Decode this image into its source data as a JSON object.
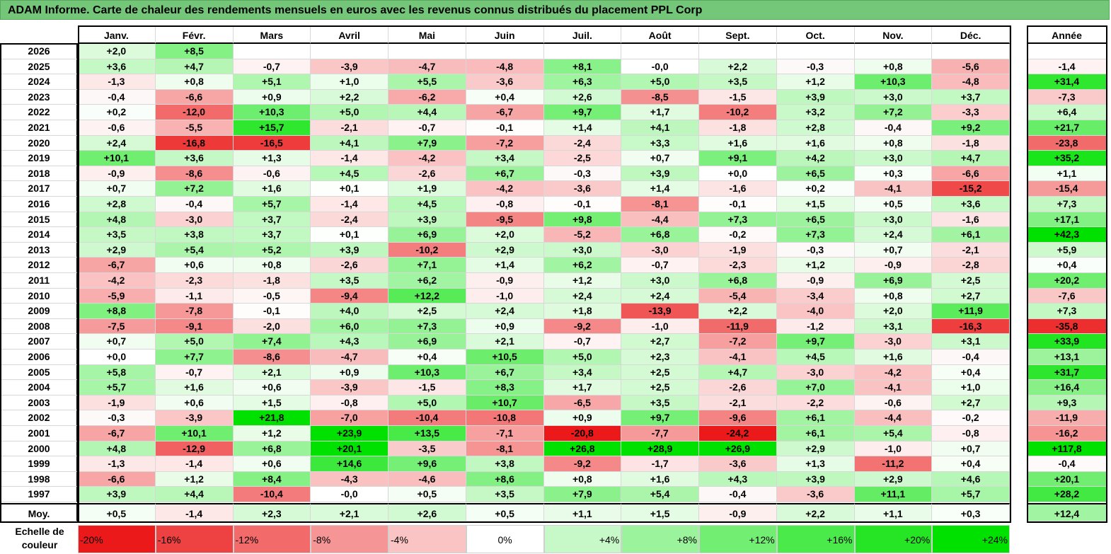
{
  "title": "ADAM Informe. Carte de chaleur des rendements mensuels en euros avec les revenus connus distribués du placement PPL Corp",
  "chart_data": {
    "type": "heatmap",
    "title": "ADAM Informe. Carte de chaleur des rendements mensuels en euros avec les revenus connus distribués du placement PPL Corp",
    "columns": [
      "Janv.",
      "Févr.",
      "Mars",
      "Avril",
      "Mai",
      "Juin",
      "Juil.",
      "Août",
      "Sept.",
      "Oct.",
      "Nov.",
      "Déc."
    ],
    "annual_header": "Année",
    "rows": [
      {
        "year": "2026",
        "values": [
          "+2,0",
          "+8,5",
          "",
          "",
          "",
          "",
          "",
          "",
          "",
          "",
          "",
          ""
        ],
        "annual": ""
      },
      {
        "year": "2025",
        "values": [
          "+3,6",
          "+4,7",
          "-0,7",
          "-3,9",
          "-4,7",
          "-4,8",
          "+8,1",
          "-0,0",
          "+2,2",
          "-0,3",
          "+0,8",
          "-5,6"
        ],
        "annual": "-1,4"
      },
      {
        "year": "2024",
        "values": [
          "-1,3",
          "+0,8",
          "+5,1",
          "+1,0",
          "+5,5",
          "-3,6",
          "+6,3",
          "+5,0",
          "+3,5",
          "+1,2",
          "+10,3",
          "-4,8"
        ],
        "annual": "+31,4"
      },
      {
        "year": "2023",
        "values": [
          "-0,4",
          "-6,6",
          "+0,9",
          "+2,2",
          "-6,2",
          "+0,4",
          "+2,6",
          "-8,5",
          "-1,5",
          "+3,9",
          "+3,0",
          "+3,7"
        ],
        "annual": "-7,3"
      },
      {
        "year": "2022",
        "values": [
          "+0,2",
          "-12,0",
          "+10,3",
          "+5,0",
          "+4,4",
          "-6,7",
          "+9,7",
          "+1,7",
          "-10,2",
          "+3,2",
          "+7,2",
          "-3,3"
        ],
        "annual": "+6,4"
      },
      {
        "year": "2021",
        "values": [
          "-0,6",
          "-5,5",
          "+15,7",
          "-2,1",
          "-0,7",
          "-0,1",
          "+1,4",
          "+4,1",
          "-1,8",
          "+2,8",
          "-0,4",
          "+9,2"
        ],
        "annual": "+21,7"
      },
      {
        "year": "2020",
        "values": [
          "+2,4",
          "-16,8",
          "-16,5",
          "+4,1",
          "+7,9",
          "-7,2",
          "-2,4",
          "+3,3",
          "+1,6",
          "+1,6",
          "+0,8",
          "-1,8"
        ],
        "annual": "-23,8"
      },
      {
        "year": "2019",
        "values": [
          "+10,1",
          "+3,6",
          "+1,3",
          "-1,4",
          "-4,2",
          "+3,4",
          "-2,5",
          "+0,7",
          "+9,1",
          "+4,2",
          "+3,0",
          "+4,7"
        ],
        "annual": "+35,2"
      },
      {
        "year": "2018",
        "values": [
          "-0,9",
          "-8,6",
          "-0,6",
          "+4,5",
          "-2,6",
          "+6,7",
          "-0,3",
          "+3,9",
          "+0,0",
          "+6,5",
          "+0,3",
          "-6,6"
        ],
        "annual": "+1,1"
      },
      {
        "year": "2017",
        "values": [
          "+0,7",
          "+7,2",
          "+1,6",
          "+0,1",
          "+1,9",
          "-4,2",
          "-3,6",
          "+1,4",
          "-1,6",
          "+0,2",
          "-4,1",
          "-15,2"
        ],
        "annual": "-15,4"
      },
      {
        "year": "2016",
        "values": [
          "+2,8",
          "-0,4",
          "+5,7",
          "-1,4",
          "+4,5",
          "-0,8",
          "-0,1",
          "-8,1",
          "-0,1",
          "+1,5",
          "+0,5",
          "+3,6"
        ],
        "annual": "+7,3"
      },
      {
        "year": "2015",
        "values": [
          "+4,8",
          "-3,0",
          "+3,7",
          "-2,4",
          "+3,9",
          "-9,5",
          "+9,8",
          "-4,4",
          "+7,3",
          "+6,5",
          "+3,0",
          "-1,6"
        ],
        "annual": "+17,1"
      },
      {
        "year": "2014",
        "values": [
          "+3,5",
          "+3,8",
          "+3,7",
          "+0,1",
          "+6,9",
          "+2,0",
          "-5,2",
          "+6,8",
          "-0,2",
          "+7,3",
          "+2,4",
          "+6,1"
        ],
        "annual": "+42,3"
      },
      {
        "year": "2013",
        "values": [
          "+2,9",
          "+5,4",
          "+5,2",
          "+3,9",
          "-10,2",
          "+2,9",
          "+3,0",
          "-3,0",
          "-1,9",
          "-0,3",
          "+0,7",
          "-2,1"
        ],
        "annual": "+5,9"
      },
      {
        "year": "2012",
        "values": [
          "-6,7",
          "+0,6",
          "+0,8",
          "-2,6",
          "+7,1",
          "+1,4",
          "+6,2",
          "-0,7",
          "-2,3",
          "+1,2",
          "-0,9",
          "-2,8"
        ],
        "annual": "+0,4"
      },
      {
        "year": "2011",
        "values": [
          "-4,2",
          "-2,3",
          "-1,8",
          "+3,5",
          "+6,2",
          "-0,9",
          "+1,2",
          "+3,0",
          "+6,8",
          "-0,9",
          "+6,9",
          "+2,5"
        ],
        "annual": "+20,2"
      },
      {
        "year": "2010",
        "values": [
          "-5,9",
          "-1,1",
          "-0,5",
          "-9,4",
          "+12,2",
          "-1,0",
          "+2,4",
          "+2,4",
          "-5,4",
          "-3,4",
          "+0,8",
          "+2,7"
        ],
        "annual": "-7,6"
      },
      {
        "year": "2009",
        "values": [
          "+8,8",
          "-7,8",
          "-0,1",
          "+4,0",
          "+2,5",
          "+2,4",
          "+1,8",
          "-13,9",
          "+2,2",
          "-4,0",
          "+2,0",
          "+11,9"
        ],
        "annual": "+7,3"
      },
      {
        "year": "2008",
        "values": [
          "-7,5",
          "-9,1",
          "-2,0",
          "+6,0",
          "+7,3",
          "+0,9",
          "-9,2",
          "-1,0",
          "-11,9",
          "-1,2",
          "+3,1",
          "-16,3"
        ],
        "annual": "-35,8"
      },
      {
        "year": "2007",
        "values": [
          "+0,7",
          "+5,0",
          "+7,4",
          "+4,3",
          "+6,9",
          "+2,1",
          "-0,7",
          "+2,7",
          "-7,2",
          "+9,7",
          "-3,0",
          "+3,1"
        ],
        "annual": "+33,9"
      },
      {
        "year": "2006",
        "values": [
          "+0,0",
          "+7,7",
          "-8,6",
          "-4,7",
          "+0,4",
          "+10,5",
          "+5,0",
          "+2,3",
          "-4,1",
          "+4,5",
          "+1,6",
          "-0,4"
        ],
        "annual": "+13,1"
      },
      {
        "year": "2005",
        "values": [
          "+5,8",
          "-0,7",
          "+2,1",
          "+0,9",
          "+10,3",
          "+6,7",
          "+3,4",
          "+2,5",
          "+4,7",
          "-3,0",
          "-4,2",
          "+0,4"
        ],
        "annual": "+31,7"
      },
      {
        "year": "2004",
        "values": [
          "+5,7",
          "+1,6",
          "+0,6",
          "-3,9",
          "-1,5",
          "+8,3",
          "+1,7",
          "+2,5",
          "-2,6",
          "+7,0",
          "-4,1",
          "+1,0"
        ],
        "annual": "+16,4"
      },
      {
        "year": "2003",
        "values": [
          "-1,9",
          "+0,6",
          "+1,5",
          "-0,8",
          "+5,0",
          "+10,7",
          "-6,5",
          "+3,5",
          "-2,1",
          "-2,2",
          "-0,6",
          "+2,7"
        ],
        "annual": "+9,3"
      },
      {
        "year": "2002",
        "values": [
          "-0,3",
          "-3,9",
          "+21,8",
          "-7,0",
          "-10,4",
          "-10,8",
          "+0,9",
          "+9,7",
          "-9,6",
          "+6,1",
          "-4,4",
          "-0,2"
        ],
        "annual": "-11,9"
      },
      {
        "year": "2001",
        "values": [
          "-6,7",
          "+10,1",
          "+1,2",
          "+23,9",
          "+13,5",
          "-7,1",
          "-20,8",
          "-7,7",
          "-24,2",
          "+6,1",
          "+5,4",
          "-0,8"
        ],
        "annual": "-16,2"
      },
      {
        "year": "2000",
        "values": [
          "+4,8",
          "-12,9",
          "+6,8",
          "+20,1",
          "-3,5",
          "-8,1",
          "+26,8",
          "+28,9",
          "+26,9",
          "+2,9",
          "-1,0",
          "+0,7"
        ],
        "annual": "+117,8"
      },
      {
        "year": "1999",
        "values": [
          "-1,3",
          "-1,4",
          "+0,6",
          "+14,6",
          "+9,6",
          "+3,8",
          "-9,2",
          "-1,7",
          "-3,6",
          "+1,3",
          "-11,2",
          "+0,4"
        ],
        "annual": "-0,4"
      },
      {
        "year": "1998",
        "values": [
          "-6,6",
          "+1,2",
          "+8,4",
          "-4,3",
          "-4,6",
          "+8,6",
          "+0,8",
          "+1,6",
          "+4,3",
          "+3,9",
          "+2,9",
          "+4,6"
        ],
        "annual": "+20,1"
      },
      {
        "year": "1997",
        "values": [
          "+3,9",
          "+4,4",
          "-10,4",
          "-0,0",
          "+0,5",
          "+3,5",
          "+7,9",
          "+5,4",
          "-0,4",
          "-3,6",
          "+11,1",
          "+5,7"
        ],
        "annual": "+28,2"
      }
    ],
    "average": {
      "label": "Moy.",
      "values": [
        "+0,5",
        "-1,4",
        "+2,3",
        "+2,1",
        "+2,6",
        "+0,5",
        "+1,1",
        "+1,5",
        "-0,9",
        "+2,2",
        "+1,1",
        "+0,3"
      ],
      "annual": "+12,4"
    },
    "color_scale": {
      "label_line1": "Echelle de",
      "label_line2": "couleur",
      "stops": [
        "-20%",
        "-16%",
        "-12%",
        "-8%",
        "-4%",
        "0%",
        "+4%",
        "+8%",
        "+12%",
        "+16%",
        "+20%",
        "+24%"
      ],
      "negative_color": "#ff0000",
      "positive_color": "#00ee00",
      "neutral_color": "#ffffff"
    }
  }
}
